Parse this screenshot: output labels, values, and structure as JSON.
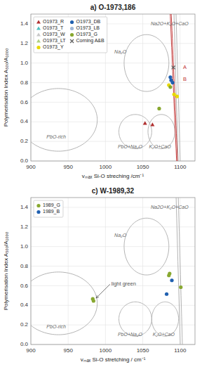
{
  "chart_data": [
    {
      "type": "scatter",
      "title": "a) O-1973,186",
      "x_label": "vₘₐₓ Si-O streching /cm⁻¹",
      "y_label": "Polymerisation Index A₅₀₀/A₁₀₀₀",
      "xlim": [
        900,
        1120
      ],
      "ylim": [
        0.0,
        1.5
      ],
      "xticks": [
        900,
        950,
        1000,
        1050,
        1100
      ],
      "yticks": [
        {
          "value": 0.0,
          "label": "0.0"
        },
        0.2,
        0.4,
        0.6,
        0.8,
        {
          "value": 1.0,
          "label": "1.0"
        },
        1.2,
        1.4
      ],
      "grid": true,
      "legend": "upper left",
      "series": [
        {
          "name": "O1973_R",
          "marker": "triangle",
          "color": "#b03030",
          "x": [
            1053,
            1063
          ],
          "values": [
            0.385,
            0.37
          ]
        },
        {
          "name": "O1973_T",
          "marker": "triangle",
          "color": "#4fc0c0",
          "x": [],
          "values": []
        },
        {
          "name": "O1973_W",
          "marker": "triangle",
          "color": "#c8c8c8",
          "x": [],
          "values": []
        },
        {
          "name": "O1973_LT",
          "marker": "triangle",
          "color": "#b0d080",
          "x": [],
          "values": []
        },
        {
          "name": "O1973_Y",
          "marker": "circle",
          "color": "#e8d800",
          "x": [
            1085,
            1092,
            1096
          ],
          "values": [
            0.775,
            0.68,
            0.66
          ]
        },
        {
          "name": "O1973_DB",
          "marker": "circle",
          "color": "#2060b0",
          "x": [
            1087,
            1088,
            1090
          ],
          "values": [
            0.855,
            0.825,
            0.8
          ]
        },
        {
          "name": "O1973_LB",
          "marker": "circle",
          "color": "#a0b8d8",
          "x": [],
          "values": []
        },
        {
          "name": "O1973_G",
          "marker": "circle",
          "color": "#88a830",
          "x": [
            1072,
            1087
          ],
          "values": [
            0.535,
            0.755
          ]
        },
        {
          "name": "Corning A&B",
          "marker": "cross",
          "color": "#606060",
          "x": [
            1091
          ],
          "values": [
            0.955
          ]
        }
      ],
      "ellipses": [
        {
          "cx": 937,
          "cy": 0.42,
          "rx": 52,
          "ry": 0.32,
          "angle": 0,
          "color": "#aaaaaa"
        },
        {
          "cx": 1040,
          "cy": 0.3,
          "rx": 22,
          "ry": 0.175,
          "angle": 0,
          "color": "#aaaaaa"
        },
        {
          "cx": 1075,
          "cy": 0.3,
          "rx": 18,
          "ry": 0.175,
          "angle": 0,
          "color": "#aaaaaa"
        },
        {
          "cx": 1055,
          "cy": 1.0,
          "rx": 30,
          "ry": 0.29,
          "angle": 0,
          "color": "#aaaaaa"
        },
        {
          "cx": 1095,
          "cy": 1.02,
          "rx": 16,
          "ry": 0.36,
          "angle": -15,
          "color": "#aaaaaa"
        },
        {
          "cx": 1091,
          "cy": 0.88,
          "rx": 9,
          "ry": 0.13,
          "angle": -10,
          "color": "#c03030"
        }
      ],
      "region_labels": [
        {
          "x": 1020,
          "y": 1.11,
          "text": "Na₂O"
        },
        {
          "x": 1086,
          "y": 1.395,
          "text": "Na2O+K₂O+CaO"
        },
        {
          "x": 934,
          "y": 0.24,
          "text": "PbO-rich"
        },
        {
          "x": 1033,
          "y": 0.145,
          "text": "PbO+Na₂O"
        },
        {
          "x": 1073,
          "y": 0.145,
          "text": "K₂O+CaO"
        }
      ],
      "annotations": [
        {
          "text": "A",
          "x": 1104,
          "y": 0.955,
          "color": "#c03030"
        },
        {
          "text": "B",
          "x": 1104,
          "y": 0.835,
          "color": "#c03030"
        }
      ]
    },
    {
      "type": "scatter",
      "title": "c) W-1989,32",
      "x_label": "vₘₐₓ Si-O stretching / cm⁻¹",
      "y_label": "Polymerisation Index A₅₀₀/A₁₀₀₀",
      "xlim": [
        900,
        1120
      ],
      "ylim": [
        0.0,
        1.5
      ],
      "xticks": [
        900,
        950,
        1000,
        1050,
        1100
      ],
      "yticks": [
        {
          "value": 0.0,
          "label": "0.0"
        },
        0.2,
        0.4,
        0.6,
        0.8,
        {
          "value": 1.0,
          "label": "1.0"
        },
        1.2,
        1.4
      ],
      "grid": true,
      "legend": "upper left",
      "series": [
        {
          "name": "1989_G",
          "marker": "circle",
          "color": "#88a830",
          "x": [
            983,
            984,
            1085,
            1086,
            1101
          ],
          "values": [
            0.465,
            0.445,
            0.705,
            0.725,
            0.585
          ]
        },
        {
          "name": "1989_B",
          "marker": "circle",
          "color": "#2060b0",
          "x": [
            1082,
            1089
          ],
          "values": [
            0.515,
            0.655
          ]
        }
      ],
      "ellipses": [
        {
          "cx": 937,
          "cy": 0.42,
          "rx": 52,
          "ry": 0.32,
          "angle": 0,
          "color": "#aaaaaa"
        },
        {
          "cx": 1040,
          "cy": 0.26,
          "rx": 22,
          "ry": 0.175,
          "angle": 0,
          "color": "#aaaaaa"
        },
        {
          "cx": 1080,
          "cy": 0.26,
          "rx": 18,
          "ry": 0.175,
          "angle": 0,
          "color": "#aaaaaa"
        },
        {
          "cx": 1055,
          "cy": 1.0,
          "rx": 30,
          "ry": 0.29,
          "angle": 0,
          "color": "#aaaaaa"
        },
        {
          "cx": 1098,
          "cy": 1.0,
          "rx": 16,
          "ry": 0.38,
          "angle": -15,
          "color": "#aaaaaa"
        }
      ],
      "region_labels": [
        {
          "x": 1020,
          "y": 1.11,
          "text": "Na₂O"
        },
        {
          "x": 1086,
          "y": 1.395,
          "text": "Na2O+K₂O+CaO"
        },
        {
          "x": 934,
          "y": 0.18,
          "text": "PbO-rich"
        },
        {
          "x": 1033,
          "y": 0.1,
          "text": "PbO+Na₂O"
        },
        {
          "x": 1078,
          "y": 0.1,
          "text": "K₂O+CaO"
        }
      ],
      "annotations": [
        {
          "text": "light green",
          "x": 1008,
          "y": 0.615,
          "target_x": 985,
          "target_y": 0.455
        }
      ]
    }
  ]
}
